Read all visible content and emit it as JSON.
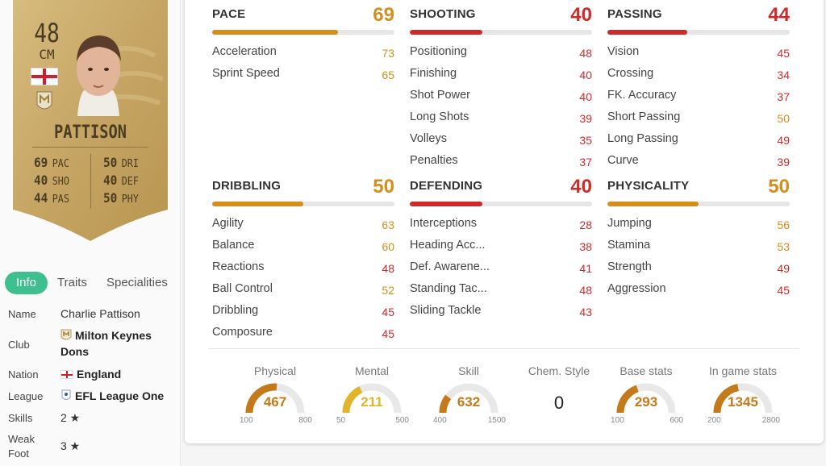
{
  "card": {
    "rating": "48",
    "position": "CM",
    "name": "PATTISON",
    "stats_left": [
      {
        "value": "69",
        "label": "PAC"
      },
      {
        "value": "40",
        "label": "SHO"
      },
      {
        "value": "44",
        "label": "PAS"
      }
    ],
    "stats_right": [
      {
        "value": "50",
        "label": "DRI"
      },
      {
        "value": "40",
        "label": "DEF"
      },
      {
        "value": "50",
        "label": "PHY"
      }
    ],
    "colors": {
      "card_gold": "#c8a968",
      "text": "#4a3c22"
    }
  },
  "tabs": [
    {
      "label": "Info",
      "active": true
    },
    {
      "label": "Traits",
      "active": false
    },
    {
      "label": "Specialities",
      "active": false
    }
  ],
  "info": {
    "name": {
      "label": "Name",
      "value": "Charlie Pattison"
    },
    "club": {
      "label": "Club",
      "value_line1": "Milton Keynes",
      "value_line2": "Dons"
    },
    "nation": {
      "label": "Nation",
      "value": "England"
    },
    "league": {
      "label": "League",
      "value": "EFL League One"
    },
    "skills": {
      "label": "Skills",
      "value": "2 ★"
    },
    "weak_foot": {
      "label_line1": "Weak",
      "label_line2": "Foot",
      "value": "3 ★"
    }
  },
  "categories": [
    {
      "key": "pace",
      "title": "PACE",
      "value": "69",
      "fill": 0.69,
      "tier": "gold",
      "attrs": [
        {
          "name": "Acceleration",
          "value": "73",
          "tier": "gold"
        },
        {
          "name": "Sprint Speed",
          "value": "65",
          "tier": "gold"
        }
      ]
    },
    {
      "key": "shooting",
      "title": "SHOOTING",
      "value": "40",
      "fill": 0.4,
      "tier": "red",
      "attrs": [
        {
          "name": "Positioning",
          "value": "48",
          "tier": "red"
        },
        {
          "name": "Finishing",
          "value": "40",
          "tier": "red"
        },
        {
          "name": "Shot Power",
          "value": "40",
          "tier": "red"
        },
        {
          "name": "Long Shots",
          "value": "39",
          "tier": "red"
        },
        {
          "name": "Volleys",
          "value": "35",
          "tier": "red"
        },
        {
          "name": "Penalties",
          "value": "37",
          "tier": "red"
        }
      ]
    },
    {
      "key": "passing",
      "title": "PASSING",
      "value": "44",
      "fill": 0.44,
      "tier": "red",
      "attrs": [
        {
          "name": "Vision",
          "value": "45",
          "tier": "red"
        },
        {
          "name": "Crossing",
          "value": "34",
          "tier": "red"
        },
        {
          "name": "FK. Accuracy",
          "value": "37",
          "tier": "red"
        },
        {
          "name": "Short Passing",
          "value": "50",
          "tier": "gold"
        },
        {
          "name": "Long Passing",
          "value": "49",
          "tier": "red"
        },
        {
          "name": "Curve",
          "value": "39",
          "tier": "red"
        }
      ]
    },
    {
      "key": "dribbling",
      "title": "DRIBBLING",
      "value": "50",
      "fill": 0.5,
      "tier": "gold",
      "attrs": [
        {
          "name": "Agility",
          "value": "63",
          "tier": "gold"
        },
        {
          "name": "Balance",
          "value": "60",
          "tier": "gold"
        },
        {
          "name": "Reactions",
          "value": "48",
          "tier": "red"
        },
        {
          "name": "Ball Control",
          "value": "52",
          "tier": "gold"
        },
        {
          "name": "Dribbling",
          "value": "45",
          "tier": "red"
        },
        {
          "name": "Composure",
          "value": "45",
          "tier": "red"
        }
      ]
    },
    {
      "key": "defending",
      "title": "DEFENDING",
      "value": "40",
      "fill": 0.4,
      "tier": "red",
      "attrs": [
        {
          "name": "Interceptions",
          "value": "28",
          "tier": "red"
        },
        {
          "name": "Heading Acc...",
          "value": "38",
          "tier": "red"
        },
        {
          "name": "Def. Awarene...",
          "value": "41",
          "tier": "red"
        },
        {
          "name": "Standing Tac...",
          "value": "48",
          "tier": "red"
        },
        {
          "name": "Sliding Tackle",
          "value": "43",
          "tier": "red"
        }
      ]
    },
    {
      "key": "physicality",
      "title": "PHYSICALITY",
      "value": "50",
      "fill": 0.5,
      "tier": "gold",
      "attrs": [
        {
          "name": "Jumping",
          "value": "56",
          "tier": "gold"
        },
        {
          "name": "Stamina",
          "value": "53",
          "tier": "gold"
        },
        {
          "name": "Strength",
          "value": "49",
          "tier": "red"
        },
        {
          "name": "Aggression",
          "value": "45",
          "tier": "red"
        }
      ]
    }
  ],
  "summary": [
    {
      "key": "physical",
      "label": "Physical",
      "value": "467",
      "min": "100",
      "max": "800",
      "fill": 0.52,
      "color": "#c47a1a"
    },
    {
      "key": "mental",
      "label": "Mental",
      "value": "211",
      "min": "50",
      "max": "500",
      "fill": 0.36,
      "color": "#e0b52a"
    },
    {
      "key": "skill",
      "label": "Skill",
      "value": "632",
      "min": "400",
      "max": "1500",
      "fill": 0.21,
      "color": "#c47a1a"
    },
    {
      "key": "base",
      "label": "Base stats",
      "value": "293",
      "min": "100",
      "max": "600",
      "fill": 0.39,
      "color": "#c47a1a"
    },
    {
      "key": "ingame",
      "label": "In game stats",
      "value": "1345",
      "min": "200",
      "max": "2800",
      "fill": 0.44,
      "color": "#c47a1a"
    }
  ],
  "chem": {
    "label": "Chem. Style",
    "value": "0"
  },
  "colors": {
    "gold": "#d58e1c",
    "red": "#cf2a2a",
    "tab_active": "#3ebf8f"
  }
}
